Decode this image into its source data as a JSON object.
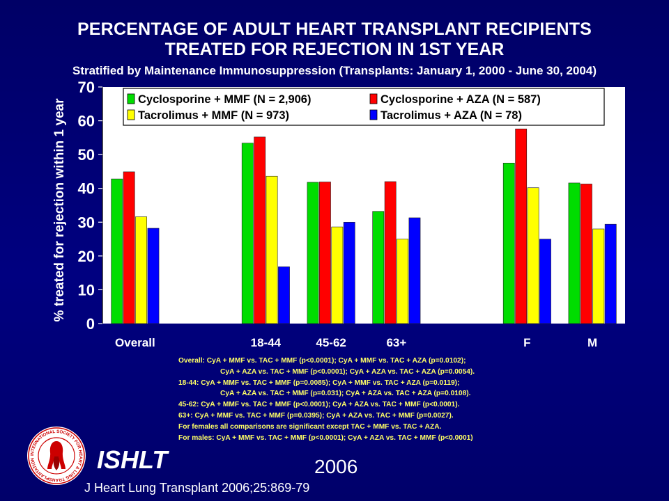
{
  "title_line1": "PERCENTAGE OF ADULT HEART TRANSPLANT RECIPIENTS",
  "title_line2": "TREATED FOR REJECTION IN 1ST YEAR",
  "subtitle": "Stratified by Maintenance Immunosuppression (Transplants: January 1, 2000 - June 30, 2004)",
  "notes": [
    "Overall: CyA + MMF vs. TAC + MMF (p<0.0001); CyA + MMF vs. TAC + AZA (p=0.0102);",
    "CyA + AZA vs. TAC + MMF (p<0.0001); CyA + AZA vs. TAC + AZA (p=0.0054).",
    "18-44: CyA + MMF vs. TAC + MMF (p=0.0085); CyA + MMF vs. TAC + AZA (p=0.0119);",
    "CyA + AZA vs. TAC + MMF (p=0.031); CyA + AZA vs. TAC + AZA (p=0.0108).",
    "45-62: CyA + MMF vs. TAC + MMF (p<0.0001); CyA + AZA vs. TAC + MMF (p<0.0001).",
    "63+: CyA + MMF vs. TAC + MMF (p=0.0395); CyA + AZA vs. TAC + MMF (p=0.0027).",
    "For females all comparisons are significant except TAC + MMF vs. TAC + AZA.",
    "For males: CyA + MMF vs. TAC + MMF (p<0.0001); CyA + AZA vs. TAC + MMF (p<0.0001)"
  ],
  "brand": "ISHLT",
  "year": "2006",
  "citation": "J Heart Lung Transplant 2006;25:869-79",
  "logo_text": "INTERNATIONAL SOCIETY FOR HEART & LUNG TRANSPLANTATION",
  "colors": {
    "background": "#000080",
    "note_text": "#ffff66",
    "plot_bg": "#ffffff"
  },
  "chart_data": {
    "type": "bar",
    "ylabel": "% treated for rejection within 1 year",
    "ylim": [
      0,
      70
    ],
    "yticks": [
      0,
      10,
      20,
      30,
      40,
      50,
      60,
      70
    ],
    "grid": false,
    "legend_position": "top",
    "categories": [
      "Overall",
      "",
      "18-44",
      "45-62",
      "63+",
      "",
      "F",
      "M"
    ],
    "series": [
      {
        "name": "Cyclosporine + MMF (N = 2,906)",
        "color": "#00dd00",
        "values": [
          42.8,
          null,
          53.4,
          41.8,
          33.2,
          null,
          47.5,
          41.6
        ]
      },
      {
        "name": "Cyclosporine + AZA (N = 587)",
        "color": "#ff0000",
        "values": [
          44.9,
          null,
          55.2,
          41.9,
          42.0,
          null,
          57.6,
          41.3
        ]
      },
      {
        "name": "Tacrolimus + MMF (N = 973)",
        "color": "#ffff00",
        "values": [
          31.6,
          null,
          43.6,
          28.6,
          25.0,
          null,
          40.2,
          28.0
        ]
      },
      {
        "name": "Tacrolimus + AZA (N = 78)",
        "color": "#0000ff",
        "values": [
          28.2,
          null,
          16.8,
          30.0,
          31.3,
          null,
          25.0,
          29.4
        ]
      }
    ]
  }
}
